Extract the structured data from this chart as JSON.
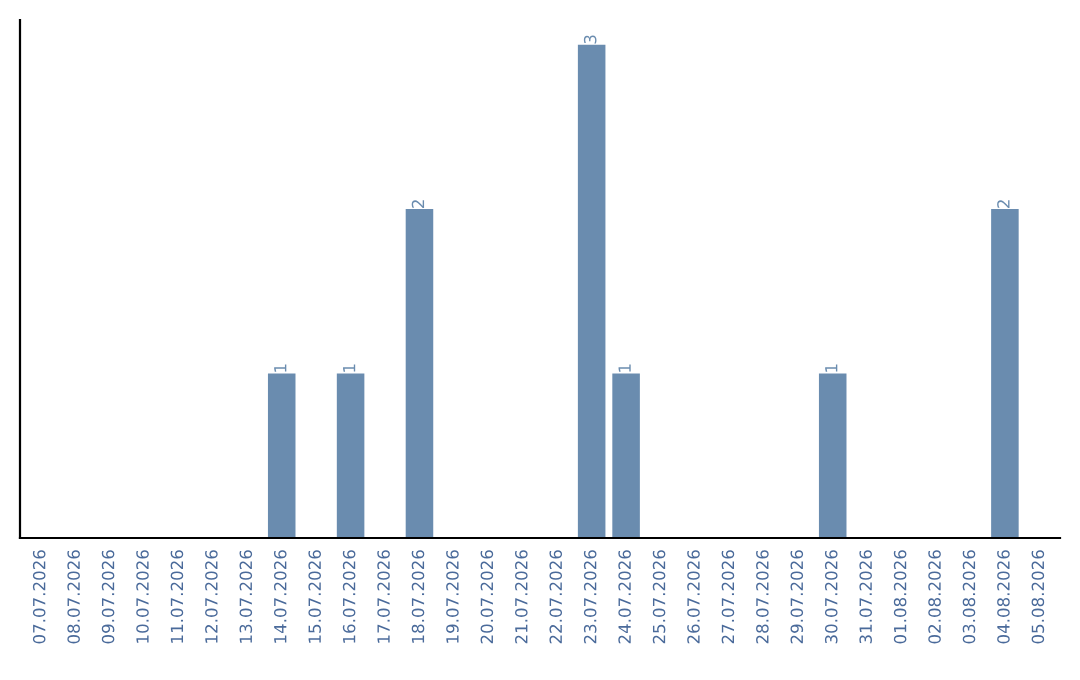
{
  "chart_data": {
    "type": "bar",
    "categories": [
      "07.07.2026",
      "08.07.2026",
      "09.07.2026",
      "10.07.2026",
      "11.07.2026",
      "12.07.2026",
      "13.07.2026",
      "14.07.2026",
      "15.07.2026",
      "16.07.2026",
      "17.07.2026",
      "18.07.2026",
      "19.07.2026",
      "20.07.2026",
      "21.07.2026",
      "22.07.2026",
      "23.07.2026",
      "24.07.2026",
      "25.07.2026",
      "26.07.2026",
      "27.07.2026",
      "28.07.2026",
      "29.07.2026",
      "30.07.2026",
      "31.07.2026",
      "01.08.2026",
      "02.08.2026",
      "03.08.2026",
      "04.08.2026",
      "05.08.2026"
    ],
    "values": [
      0,
      0,
      0,
      0,
      0,
      0,
      0,
      1,
      0,
      1,
      0,
      2,
      0,
      0,
      0,
      0,
      3,
      1,
      0,
      0,
      0,
      0,
      0,
      1,
      0,
      0,
      0,
      0,
      2,
      0
    ],
    "color": "#6a8caf",
    "value_labels": [
      null,
      null,
      null,
      null,
      null,
      null,
      null,
      "1",
      null,
      "1",
      null,
      "2",
      null,
      null,
      null,
      null,
      "3",
      "1",
      null,
      null,
      null,
      null,
      null,
      "1",
      null,
      null,
      null,
      null,
      "2",
      null
    ],
    "tick_labels": "x",
    "grid": false,
    "legend": false
  }
}
